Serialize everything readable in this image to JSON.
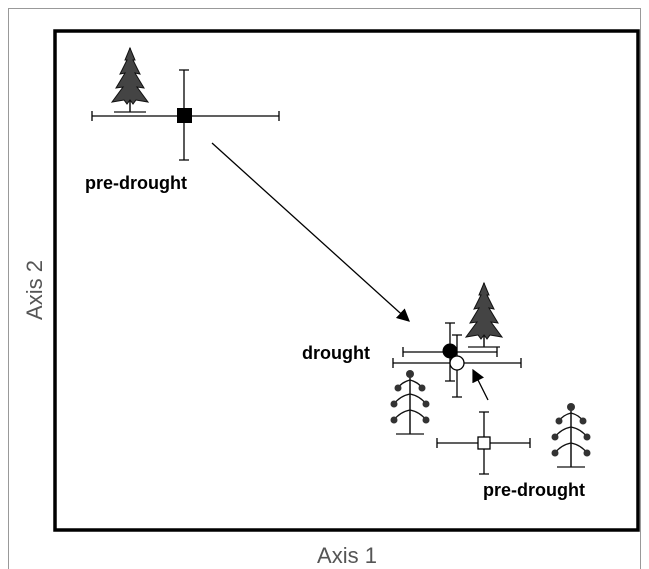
{
  "axes": {
    "x_label": "Axis 1",
    "y_label": "Axis 2"
  },
  "labels": {
    "top_pre_drought": "pre-drought",
    "drought": "drought",
    "bottom_pre_drought": "pre-drought"
  }
}
